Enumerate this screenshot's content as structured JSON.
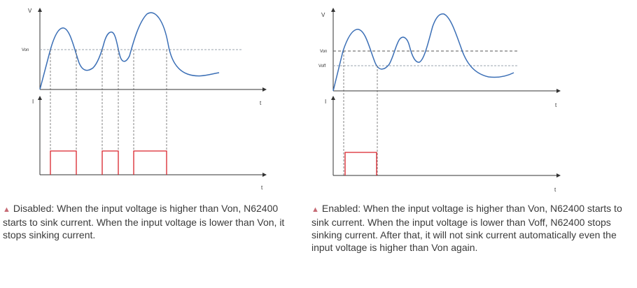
{
  "left_panel": {
    "voltage_axis_label": "V",
    "time_axis_label_top": "t",
    "current_axis_label": "I",
    "time_axis_label_bottom": "t",
    "von_label": "Von"
  },
  "right_panel": {
    "voltage_axis_label": "V",
    "time_axis_label_top": "t",
    "current_axis_label": "I",
    "time_axis_label_bottom": "t",
    "von_label": "Von",
    "voff_label": "Voff"
  },
  "colors": {
    "voltage_curve": "#3b6fb6",
    "current_pulse": "#d9232b",
    "axes": "#333333",
    "threshold_line": "#9aa3ad",
    "guide_line": "#666666",
    "bullet": "#c66a74"
  },
  "captions": {
    "left": "Disabled: When the input voltage is higher than Von, N62400 starts to sink current. When the input voltage is lower than Von, it stops sinking current.",
    "right": "Enabled: When the input voltage is higher than Von, N62400 starts to sink current. When the input voltage is lower than Voff, N62400 stops sinking current. After that, it will not sink current automatically even the input voltage is higher than Von again."
  }
}
